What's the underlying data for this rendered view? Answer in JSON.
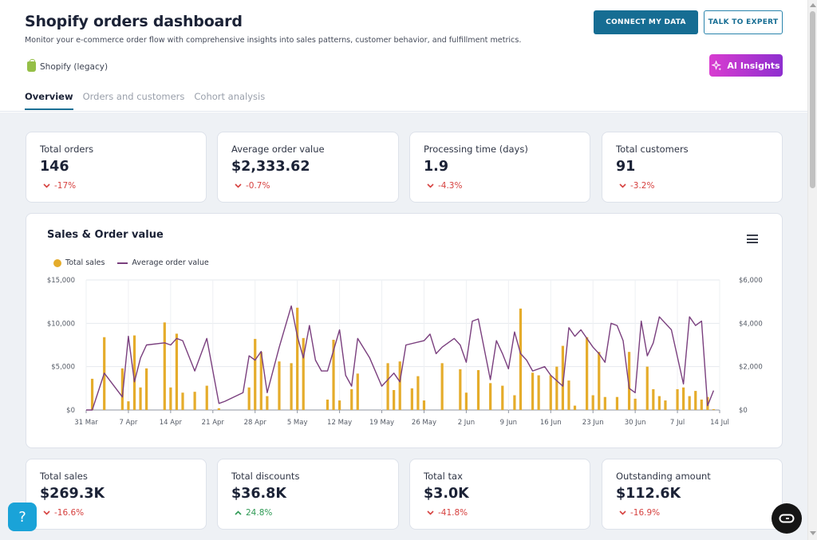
{
  "header": {
    "title": "Shopify orders dashboard",
    "subtitle": "Monitor your e-commerce order flow with comprehensive insights into sales patterns, customer behavior, and fulfillment metrics.",
    "source_label": "Shopify (legacy)",
    "connect_label": "CONNECT MY DATA",
    "expert_label": "TALK TO EXPERT",
    "ai_label": "AI Insights"
  },
  "tabs": [
    {
      "label": "Overview",
      "active": true
    },
    {
      "label": "Orders and customers",
      "active": false
    },
    {
      "label": "Cohort analysis",
      "active": false
    }
  ],
  "kpis_top": [
    {
      "label": "Total orders",
      "value": "146",
      "delta": "-17%",
      "direction": "down"
    },
    {
      "label": "Average order value",
      "value": "$2,333.62",
      "delta": "-0.7%",
      "direction": "down"
    },
    {
      "label": "Processing time (days)",
      "value": "1.9",
      "delta": "-4.3%",
      "direction": "down"
    },
    {
      "label": "Total customers",
      "value": "91",
      "delta": "-3.2%",
      "direction": "down"
    }
  ],
  "kpis_bottom": [
    {
      "label": "Total sales",
      "value": "$269.3K",
      "delta": "-16.6%",
      "direction": "down"
    },
    {
      "label": "Total discounts",
      "value": "$36.8K",
      "delta": "24.8%",
      "direction": "up"
    },
    {
      "label": "Total tax",
      "value": "$3.0K",
      "delta": "-41.8%",
      "direction": "down"
    },
    {
      "label": "Outstanding amount",
      "value": "$112.6K",
      "delta": "-16.9%",
      "direction": "down"
    }
  ],
  "colors": {
    "bar": "#e5ac2b",
    "line": "#7a3f7e",
    "accent": "#166d93",
    "down": "#d6413f",
    "up": "#2f9a55"
  },
  "chart_data": {
    "type": "bar",
    "title": "Sales & Order value",
    "legend": [
      "Total sales",
      "Average order value"
    ],
    "legend_position": "top-left",
    "grid": true,
    "x_tick_labels": [
      "31 Mar",
      "7 Apr",
      "14 Apr",
      "21 Apr",
      "28 Apr",
      "5 May",
      "12 May",
      "19 May",
      "26 May",
      "2 Jun",
      "9 Jun",
      "16 Jun",
      "23 Jun",
      "30 Jun",
      "7 Jul",
      "14 Jul"
    ],
    "x_range_days": [
      0,
      105
    ],
    "y_left_ticks": [
      "$0",
      "$5,000",
      "$10,000",
      "$15,000"
    ],
    "y_left_range": [
      0,
      15000
    ],
    "y_right_ticks": [
      "$0",
      "$2,000",
      "$4,000",
      "$6,000"
    ],
    "y_right_range": [
      0,
      6000
    ],
    "series": [
      {
        "name": "Total sales",
        "axis": "left",
        "type": "bar",
        "x": [
          1,
          3,
          6,
          7,
          8,
          9,
          10,
          13,
          14,
          15,
          16,
          18,
          20,
          22,
          27,
          28,
          29,
          30,
          32,
          34,
          35,
          36,
          40,
          41,
          42,
          44,
          45,
          50,
          51,
          52,
          54,
          55,
          56,
          59,
          62,
          63,
          65,
          67,
          69,
          71,
          72,
          74,
          75,
          77,
          78,
          79,
          80,
          81,
          83,
          84,
          85,
          86,
          88,
          90,
          91,
          93,
          94,
          95,
          96,
          98,
          99,
          100,
          101,
          102,
          103,
          104
        ],
        "values": [
          3600,
          8400,
          4800,
          1000,
          8600,
          2600,
          4800,
          10100,
          2600,
          8800,
          2000,
          2100,
          2800,
          200,
          2600,
          8200,
          6700,
          1600,
          5600,
          5400,
          11800,
          8300,
          1200,
          8100,
          1100,
          2400,
          4200,
          5400,
          2300,
          5600,
          2500,
          3900,
          1100,
          5400,
          4700,
          2000,
          4600,
          3100,
          2800,
          1700,
          11700,
          4300,
          4000,
          4000,
          5000,
          7400,
          3400,
          500,
          8400,
          1700,
          6700,
          1500,
          1500,
          6700,
          1300,
          5000,
          2400,
          1600,
          1100,
          2400,
          2600,
          1600,
          2200,
          1200,
          1500,
          100
        ]
      },
      {
        "name": "Average order value",
        "axis": "right",
        "type": "line",
        "x": [
          0,
          1,
          3,
          6,
          7,
          8,
          9,
          10,
          13,
          14,
          15,
          16,
          18,
          20,
          22,
          23,
          26,
          27,
          28,
          29,
          30,
          32,
          34,
          35,
          36,
          37,
          38,
          39,
          40,
          42,
          43,
          44,
          45,
          47,
          49,
          51,
          52,
          53,
          56,
          57,
          58,
          59,
          61,
          62,
          63,
          64,
          65,
          67,
          68,
          69,
          70,
          71,
          72,
          73,
          74,
          76,
          77,
          79,
          80,
          81,
          82,
          84,
          85,
          86,
          87,
          88,
          89,
          90,
          91,
          92,
          93,
          94,
          95,
          97,
          99,
          100,
          101,
          102,
          103,
          104
        ],
        "values": [
          0,
          0,
          1700,
          600,
          3400,
          1300,
          2400,
          3000,
          3100,
          3000,
          3300,
          3200,
          1800,
          3300,
          300,
          400,
          800,
          2500,
          2300,
          2700,
          800,
          2900,
          4800,
          3400,
          2400,
          3900,
          2300,
          1800,
          1800,
          3700,
          1600,
          1100,
          3300,
          2400,
          1100,
          1700,
          1300,
          3000,
          3200,
          3500,
          2600,
          2900,
          3300,
          3000,
          2200,
          4100,
          4200,
          1400,
          3200,
          2600,
          1900,
          3600,
          2600,
          2300,
          1800,
          2000,
          1600,
          1100,
          3800,
          3400,
          3700,
          2900,
          2600,
          2200,
          4000,
          3900,
          3200,
          1000,
          800,
          4100,
          2500,
          3100,
          4300,
          3700,
          1200,
          4300,
          3900,
          4100,
          200,
          900
        ]
      }
    ]
  }
}
